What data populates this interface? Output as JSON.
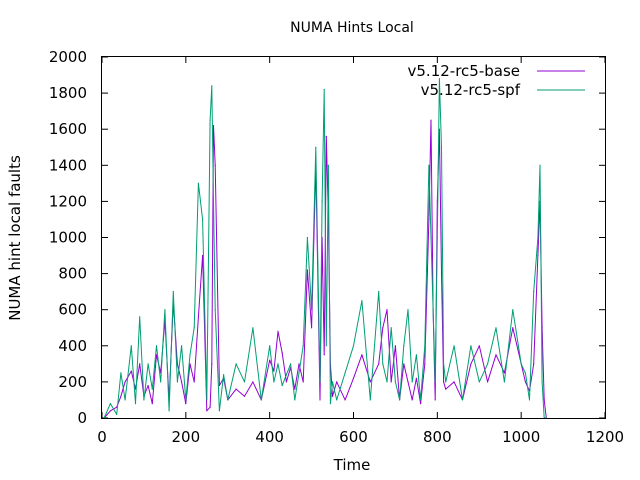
{
  "chart_data": {
    "type": "line",
    "title": "NUMA Hints Local",
    "xlabel": "Time",
    "ylabel": "NUMA hint local faults",
    "xlim": [
      0,
      1200
    ],
    "ylim": [
      0,
      2000
    ],
    "x_ticks": [
      "0",
      "200",
      "400",
      "600",
      "800",
      "1000",
      "1200"
    ],
    "y_ticks": [
      "0",
      "200",
      "400",
      "600",
      "800",
      "1000",
      "1200",
      "1400",
      "1600",
      "1800",
      "2000"
    ],
    "grid": false,
    "legend_position": "top-right",
    "series": [
      {
        "name": "v5.12-rc5-base",
        "color": "#9400d3",
        "x": [
          5,
          20,
          35,
          45,
          55,
          70,
          80,
          90,
          100,
          110,
          120,
          130,
          140,
          150,
          160,
          170,
          180,
          190,
          200,
          210,
          220,
          230,
          240,
          250,
          258,
          262,
          266,
          270,
          280,
          290,
          300,
          320,
          340,
          360,
          380,
          400,
          410,
          420,
          430,
          440,
          450,
          460,
          470,
          480,
          490,
          500,
          510,
          520,
          525,
          530,
          535,
          540,
          545,
          550,
          560,
          580,
          600,
          620,
          640,
          660,
          670,
          680,
          690,
          700,
          710,
          720,
          730,
          740,
          750,
          760,
          770,
          780,
          785,
          790,
          795,
          800,
          805,
          810,
          815,
          820,
          840,
          860,
          880,
          900,
          920,
          940,
          960,
          980,
          1000,
          1010,
          1020,
          1030,
          1040,
          1045,
          1050,
          1055,
          1060
        ],
        "values": [
          0,
          40,
          60,
          120,
          200,
          260,
          160,
          300,
          120,
          180,
          80,
          350,
          250,
          540,
          100,
          640,
          300,
          200,
          80,
          300,
          200,
          560,
          900,
          40,
          60,
          300,
          1620,
          1400,
          180,
          220,
          100,
          160,
          120,
          200,
          100,
          320,
          260,
          480,
          360,
          200,
          280,
          160,
          300,
          200,
          820,
          500,
          1400,
          100,
          1000,
          350,
          1560,
          1100,
          300,
          120,
          200,
          100,
          220,
          350,
          200,
          300,
          500,
          600,
          200,
          400,
          100,
          300,
          200,
          100,
          220,
          80,
          300,
          1100,
          1650,
          600,
          100,
          1200,
          1600,
          800,
          200,
          160,
          200,
          100,
          300,
          400,
          200,
          350,
          250,
          500,
          300,
          200,
          150,
          300,
          900,
          1200,
          500,
          100,
          0
        ]
      },
      {
        "name": "v5.12-rc5-spf",
        "color": "#009e73",
        "x": [
          5,
          20,
          35,
          45,
          55,
          70,
          80,
          90,
          100,
          110,
          120,
          130,
          140,
          150,
          160,
          170,
          180,
          190,
          200,
          210,
          220,
          230,
          240,
          250,
          258,
          262,
          266,
          270,
          280,
          290,
          300,
          320,
          340,
          360,
          380,
          400,
          410,
          420,
          430,
          440,
          450,
          460,
          470,
          480,
          490,
          500,
          510,
          520,
          525,
          530,
          535,
          540,
          545,
          550,
          560,
          580,
          600,
          620,
          640,
          660,
          670,
          680,
          690,
          700,
          710,
          720,
          730,
          740,
          750,
          760,
          770,
          780,
          785,
          790,
          795,
          800,
          805,
          810,
          815,
          820,
          840,
          860,
          880,
          900,
          920,
          940,
          960,
          980,
          1000,
          1010,
          1020,
          1030,
          1040,
          1045,
          1050,
          1055,
          1060
        ],
        "values": [
          0,
          80,
          20,
          250,
          100,
          400,
          80,
          560,
          100,
          300,
          160,
          400,
          200,
          600,
          40,
          700,
          200,
          400,
          100,
          350,
          500,
          1300,
          1100,
          100,
          1650,
          1840,
          1200,
          600,
          40,
          240,
          100,
          300,
          200,
          500,
          100,
          400,
          200,
          300,
          180,
          240,
          300,
          100,
          250,
          400,
          1000,
          600,
          1500,
          200,
          1200,
          1820,
          400,
          1400,
          80,
          200,
          100,
          250,
          400,
          650,
          100,
          700,
          300,
          200,
          500,
          200,
          100,
          400,
          600,
          200,
          350,
          100,
          400,
          1400,
          1000,
          600,
          200,
          1000,
          1880,
          1500,
          300,
          200,
          400,
          100,
          400,
          200,
          300,
          500,
          200,
          600,
          300,
          250,
          100,
          700,
          1000,
          1400,
          200,
          0,
          0
        ]
      }
    ]
  }
}
